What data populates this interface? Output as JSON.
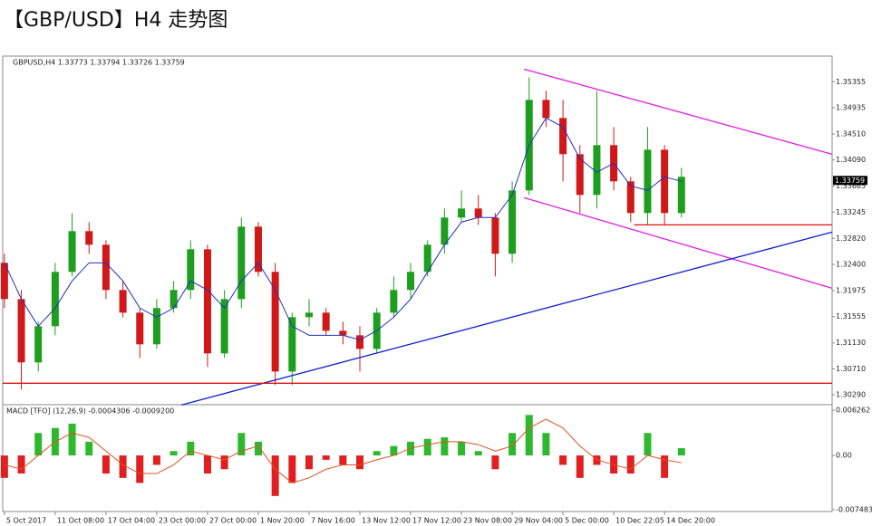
{
  "title": "【GBP/USD】H4 走势图",
  "chart_data": [
    {
      "type": "candlestick",
      "header": "GBPUSD,H4 1.33773 1.33794 1.33726 1.33759",
      "xlim": [
        -0.1,
        48.9
      ],
      "ylim": [
        1.3013,
        1.3577
      ],
      "yticks": [
        1.35355,
        1.34935,
        {
          "value": 1.3451,
          "label": "1.34510"
        },
        {
          "value": 1.3409,
          "label": "1.34090"
        },
        1.33665,
        1.33245,
        {
          "value": 1.3282,
          "label": "1.32820"
        },
        {
          "value": 1.324,
          "label": "1.32400"
        },
        1.31975,
        1.31555,
        {
          "value": 1.3113,
          "label": "1.31130"
        },
        {
          "value": 1.3071,
          "label": "1.30710"
        },
        {
          "value": 1.3029,
          "label": "1.30290"
        }
      ],
      "up_color": "#1e9e1e",
      "down_color": "#d01818",
      "open": [
        1.32425,
        1.31839,
        1.30814,
        1.314,
        1.32279,
        1.32938,
        1.32718,
        1.31986,
        1.31619,
        1.31107,
        1.31693,
        1.31986,
        1.32645,
        1.3096,
        1.31839,
        1.33011,
        1.32279,
        1.30667,
        1.31546,
        1.31619,
        1.31326,
        1.31253,
        1.31033,
        1.31619,
        1.31986,
        1.32279,
        1.32718,
        1.33158,
        1.33304,
        1.33158,
        1.32572,
        1.33597,
        1.35062,
        1.34769,
        1.34183,
        1.33524,
        1.3433,
        1.33744,
        1.33231,
        1.34256,
        1.33231
      ],
      "high": [
        1.32572,
        1.31986,
        1.31473,
        1.32425,
        1.33231,
        1.33084,
        1.32791,
        1.32132,
        1.31693,
        1.31839,
        1.32132,
        1.32791,
        1.32718,
        1.31986,
        1.33158,
        1.33084,
        1.32425,
        1.31619,
        1.31839,
        1.31693,
        1.31473,
        1.314,
        1.31693,
        1.32205,
        1.32425,
        1.32791,
        1.33304,
        1.33597,
        1.33524,
        1.33231,
        1.33744,
        1.35428,
        1.35209,
        1.35062,
        1.3433,
        1.35209,
        1.34623,
        1.33817,
        1.34623,
        1.3433,
        1.33963
      ],
      "low": [
        1.31693,
        1.30374,
        1.30667,
        1.31253,
        1.32205,
        1.32572,
        1.31839,
        1.31546,
        1.30887,
        1.31033,
        1.31619,
        1.31839,
        1.3074,
        1.30887,
        1.31693,
        1.32205,
        1.30447,
        1.30447,
        1.314,
        1.31253,
        1.31107,
        1.30667,
        1.3096,
        1.31546,
        1.31839,
        1.32205,
        1.32572,
        1.33084,
        1.3304,
        1.32205,
        1.32425,
        1.33524,
        1.34623,
        1.33744,
        1.33231,
        1.33304,
        1.33597,
        1.33084,
        1.3304,
        1.3304,
        1.33158
      ],
      "close": [
        1.31839,
        1.30814,
        1.314,
        1.32279,
        1.32938,
        1.32718,
        1.31986,
        1.31619,
        1.31107,
        1.31693,
        1.31986,
        1.32645,
        1.3096,
        1.31839,
        1.33011,
        1.32279,
        1.30667,
        1.31546,
        1.31619,
        1.31326,
        1.31253,
        1.31033,
        1.31619,
        1.31986,
        1.32279,
        1.32718,
        1.33158,
        1.33304,
        1.33158,
        1.32572,
        1.33597,
        1.35062,
        1.34769,
        1.34183,
        1.33524,
        1.3433,
        1.33744,
        1.33231,
        1.34256,
        1.33231,
        1.33817
      ],
      "ma": {
        "color": "#2030c0",
        "values": [
          1.32425,
          1.31839,
          1.314,
          1.31693,
          1.32132,
          1.32425,
          1.32425,
          1.32132,
          1.31693,
          1.31546,
          1.31693,
          1.32132,
          1.31986,
          1.31693,
          1.32132,
          1.32425,
          1.31986,
          1.314,
          1.31253,
          1.31253,
          1.31253,
          1.3118,
          1.31326,
          1.31546,
          1.31839,
          1.32279,
          1.32718,
          1.33084,
          1.33158,
          1.33158,
          1.33524,
          1.3433,
          1.34769,
          1.34623,
          1.3411,
          1.3389,
          1.34037,
          1.3367,
          1.33597,
          1.33817,
          1.33744
        ]
      },
      "lines": [
        {
          "color": "#e020e0",
          "x": [
            30.7,
            48.9
          ],
          "y": [
            1.3556,
            1.34183
          ]
        },
        {
          "color": "#e020e0",
          "x": [
            30.7,
            48.9
          ],
          "y": [
            1.3348,
            1.32015
          ]
        },
        {
          "color": "#1020d0",
          "x": [
            10.45,
            48.9
          ],
          "y": [
            1.30125,
            1.32923
          ]
        }
      ],
      "levels": [
        {
          "color": "#e01010",
          "x": [
            37.2,
            48.9
          ],
          "y": 1.3304
        },
        {
          "color": "#e01010",
          "x": [
            -0.1,
            48.9
          ],
          "y": 1.30477
        }
      ],
      "last_price": 1.33759
    },
    {
      "type": "macd",
      "header": "MACD [TFO] (12,26,9) -0.0004306 -0.0009200",
      "xlim": [
        -0.1,
        48.9
      ],
      "ylim": [
        -0.00775,
        0.00689
      ],
      "yticks": [
        0.006262,
        {
          "value": 0,
          "label": "0.00"
        },
        -0.007483
      ],
      "xticks": [
        {
          "value": 0,
          "label": "5 Oct 2017"
        },
        {
          "value": 3,
          "label": "11 Oct 08:00"
        },
        {
          "value": 6,
          "label": "17 Oct 04:00"
        },
        {
          "value": 9,
          "label": "23 Oct 00:00"
        },
        {
          "value": 12,
          "label": "27 Oct 00:00"
        },
        {
          "value": 15,
          "label": "1 Nov 20:00"
        },
        {
          "value": 18,
          "label": "7 Nov 16:00"
        },
        {
          "value": 21,
          "label": "13 Nov 12:00"
        },
        {
          "value": 24,
          "label": "17 Nov 12:00"
        },
        {
          "value": 27,
          "label": "23 Nov 08:00"
        },
        {
          "value": 30,
          "label": "29 Nov 04:00"
        },
        {
          "value": 33,
          "label": "5 Dec 00:00"
        },
        {
          "value": 36,
          "label": "10 Dec 22:05"
        },
        {
          "value": 39,
          "label": "14 Dec 20:00"
        }
      ],
      "up_color": "#2eb82e",
      "down_color": "#e02020",
      "values": [
        -0.0031,
        -0.0025,
        0.0031,
        0.0038,
        0.0044,
        0.0019,
        -0.0025,
        -0.0031,
        -0.0038,
        -0.0013,
        0.0006,
        0.0019,
        -0.0025,
        -0.0019,
        0.0031,
        0.0019,
        -0.0056,
        -0.0038,
        -0.0019,
        -0.0006,
        -0.0013,
        -0.0019,
        0.0006,
        0.0013,
        0.0019,
        0.0023,
        0.0025,
        0.0019,
        0.0006,
        -0.0019,
        0.0031,
        0.0056,
        0.0031,
        -0.0013,
        -0.0031,
        -0.0013,
        -0.0025,
        -0.0025,
        0.0031,
        -0.0031,
        0.001
      ],
      "signal": {
        "color": "#e05020",
        "values": [
          -0.0013,
          -0.0019,
          0,
          0.0019,
          0.0031,
          0.0025,
          0.0006,
          -0.0013,
          -0.0025,
          -0.0025,
          -0.0013,
          0.0006,
          0,
          -0.0006,
          0.0006,
          0.0013,
          -0.0019,
          -0.0038,
          -0.0031,
          -0.0019,
          -0.0013,
          -0.0013,
          -0.0006,
          0,
          0.001,
          0.0015,
          0.0019,
          0.0019,
          0.0015,
          0.0006,
          0.0013,
          0.0038,
          0.005,
          0.0038,
          0.0013,
          -0.0006,
          -0.0013,
          -0.0019,
          0,
          -0.0006,
          -0.001
        ]
      }
    }
  ]
}
